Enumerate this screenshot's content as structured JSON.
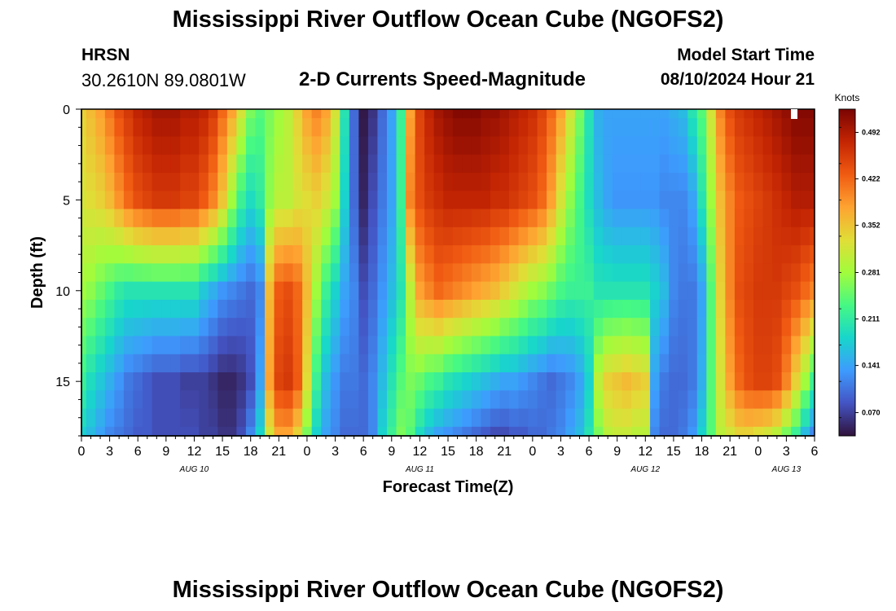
{
  "header": {
    "title": "Mississippi River Outflow Ocean Cube (NGOFS2)",
    "station": "HRSN",
    "coords": "30.2610N  89.0801W",
    "subtitle": "2-D Currents Speed-Magnitude",
    "model_start_label": "Model Start Time",
    "model_start_value": "08/10/2024 Hour 21"
  },
  "footer": {
    "next_title": "Mississippi River Outflow Ocean Cube (NGOFS2)"
  },
  "chart_data": {
    "type": "heatmap",
    "xlabel": "Forecast Time(Z)",
    "ylabel": "Depth (ft)",
    "x_start_hour": 0,
    "x_end_hour": 78,
    "x_ticks": [
      {
        "hour": 0,
        "label": "0"
      },
      {
        "hour": 3,
        "label": "3"
      },
      {
        "hour": 6,
        "label": "6"
      },
      {
        "hour": 9,
        "label": "9"
      },
      {
        "hour": 12,
        "label": "12"
      },
      {
        "hour": 15,
        "label": "15"
      },
      {
        "hour": 18,
        "label": "18"
      },
      {
        "hour": 21,
        "label": "21"
      },
      {
        "hour": 24,
        "label": "0"
      },
      {
        "hour": 27,
        "label": "3"
      },
      {
        "hour": 30,
        "label": "6"
      },
      {
        "hour": 33,
        "label": "9"
      },
      {
        "hour": 36,
        "label": "12"
      },
      {
        "hour": 39,
        "label": "15"
      },
      {
        "hour": 42,
        "label": "18"
      },
      {
        "hour": 45,
        "label": "21"
      },
      {
        "hour": 48,
        "label": "0"
      },
      {
        "hour": 51,
        "label": "3"
      },
      {
        "hour": 54,
        "label": "6"
      },
      {
        "hour": 57,
        "label": "9"
      },
      {
        "hour": 60,
        "label": "12"
      },
      {
        "hour": 63,
        "label": "15"
      },
      {
        "hour": 66,
        "label": "18"
      },
      {
        "hour": 69,
        "label": "21"
      },
      {
        "hour": 72,
        "label": "0"
      },
      {
        "hour": 75,
        "label": "3"
      },
      {
        "hour": 78,
        "label": "6"
      }
    ],
    "date_labels": [
      {
        "hour": 12,
        "label": "AUG 10"
      },
      {
        "hour": 36,
        "label": "AUG 11"
      },
      {
        "hour": 60,
        "label": "AUG 12"
      },
      {
        "hour": 75,
        "label": "AUG 13"
      }
    ],
    "ylim": [
      0,
      18
    ],
    "y_ticks": [
      0,
      5,
      10,
      15
    ],
    "y_inverted": true,
    "colorbar": {
      "label": "Knots",
      "vmin": 0.035,
      "vmax": 0.527,
      "ticks": [
        "0.492",
        "0.422",
        "0.352",
        "0.281",
        "0.211",
        "0.141",
        "0.070"
      ],
      "colormap": [
        "#30123b",
        "#4454c4",
        "#3e9bfe",
        "#18d6cb",
        "#46f884",
        "#a2fc3c",
        "#e1dd37",
        "#fea331",
        "#f05b12",
        "#c42503",
        "#7a0403"
      ]
    },
    "depths_ft": [
      0,
      1,
      2,
      3,
      4,
      5,
      6,
      7,
      8,
      9,
      10,
      11,
      12,
      13,
      14,
      15,
      16,
      17,
      18
    ],
    "key_hours": [
      0,
      1,
      2,
      3,
      4,
      5,
      6,
      7,
      8,
      9,
      10,
      11,
      12,
      13,
      14,
      15,
      16,
      17,
      18,
      19,
      20,
      21,
      22,
      23,
      24,
      25,
      26,
      27,
      28,
      29,
      30,
      31,
      32,
      33,
      34,
      35,
      36,
      37,
      38,
      39,
      40,
      41,
      42,
      43,
      44,
      45,
      46,
      47,
      48,
      49,
      50,
      51,
      52,
      53,
      54,
      55,
      56,
      57,
      58,
      59,
      60,
      61,
      62,
      63,
      64,
      65,
      66,
      67,
      68,
      69,
      70,
      71,
      72,
      73,
      74,
      75,
      76,
      77,
      78
    ],
    "profile_depths_ft": [
      0,
      5,
      10,
      15,
      18
    ],
    "profiles_knots": [
      [
        0.34,
        0.32,
        0.28,
        0.22,
        0.18
      ],
      [
        0.36,
        0.33,
        0.27,
        0.19,
        0.16
      ],
      [
        0.38,
        0.34,
        0.25,
        0.17,
        0.14
      ],
      [
        0.41,
        0.36,
        0.23,
        0.15,
        0.12
      ],
      [
        0.44,
        0.39,
        0.21,
        0.13,
        0.11
      ],
      [
        0.46,
        0.42,
        0.2,
        0.11,
        0.1
      ],
      [
        0.48,
        0.44,
        0.2,
        0.1,
        0.09
      ],
      [
        0.49,
        0.45,
        0.2,
        0.09,
        0.09
      ],
      [
        0.5,
        0.46,
        0.2,
        0.08,
        0.08
      ],
      [
        0.5,
        0.46,
        0.2,
        0.08,
        0.08
      ],
      [
        0.5,
        0.46,
        0.2,
        0.08,
        0.08
      ],
      [
        0.49,
        0.45,
        0.2,
        0.07,
        0.08
      ],
      [
        0.49,
        0.45,
        0.2,
        0.07,
        0.08
      ],
      [
        0.48,
        0.43,
        0.17,
        0.07,
        0.07
      ],
      [
        0.46,
        0.4,
        0.15,
        0.06,
        0.07
      ],
      [
        0.42,
        0.35,
        0.13,
        0.05,
        0.06
      ],
      [
        0.38,
        0.28,
        0.12,
        0.05,
        0.06
      ],
      [
        0.32,
        0.22,
        0.11,
        0.06,
        0.08
      ],
      [
        0.26,
        0.19,
        0.1,
        0.08,
        0.12
      ],
      [
        0.24,
        0.21,
        0.12,
        0.14,
        0.18
      ],
      [
        0.26,
        0.27,
        0.36,
        0.38,
        0.32
      ],
      [
        0.28,
        0.3,
        0.43,
        0.45,
        0.38
      ],
      [
        0.3,
        0.3,
        0.44,
        0.46,
        0.38
      ],
      [
        0.34,
        0.32,
        0.42,
        0.43,
        0.34
      ],
      [
        0.38,
        0.33,
        0.36,
        0.33,
        0.26
      ],
      [
        0.4,
        0.34,
        0.28,
        0.22,
        0.18
      ],
      [
        0.38,
        0.32,
        0.22,
        0.16,
        0.14
      ],
      [
        0.32,
        0.28,
        0.18,
        0.13,
        0.12
      ],
      [
        0.2,
        0.18,
        0.14,
        0.11,
        0.1
      ],
      [
        0.1,
        0.1,
        0.12,
        0.11,
        0.1
      ],
      [
        0.04,
        0.05,
        0.08,
        0.1,
        0.1
      ],
      [
        0.06,
        0.08,
        0.1,
        0.12,
        0.12
      ],
      [
        0.1,
        0.11,
        0.13,
        0.16,
        0.18
      ],
      [
        0.14,
        0.14,
        0.16,
        0.2,
        0.22
      ],
      [
        0.22,
        0.22,
        0.2,
        0.24,
        0.26
      ],
      [
        0.38,
        0.4,
        0.3,
        0.26,
        0.24
      ],
      [
        0.45,
        0.44,
        0.38,
        0.25,
        0.19
      ],
      [
        0.48,
        0.46,
        0.4,
        0.23,
        0.16
      ],
      [
        0.5,
        0.47,
        0.42,
        0.22,
        0.14
      ],
      [
        0.51,
        0.48,
        0.41,
        0.2,
        0.13
      ],
      [
        0.52,
        0.48,
        0.4,
        0.19,
        0.12
      ],
      [
        0.52,
        0.48,
        0.39,
        0.18,
        0.11
      ],
      [
        0.52,
        0.48,
        0.38,
        0.17,
        0.1
      ],
      [
        0.51,
        0.48,
        0.37,
        0.16,
        0.09
      ],
      [
        0.51,
        0.47,
        0.36,
        0.15,
        0.08
      ],
      [
        0.5,
        0.47,
        0.34,
        0.14,
        0.08
      ],
      [
        0.49,
        0.46,
        0.32,
        0.14,
        0.09
      ],
      [
        0.48,
        0.45,
        0.3,
        0.13,
        0.09
      ],
      [
        0.47,
        0.44,
        0.28,
        0.12,
        0.1
      ],
      [
        0.45,
        0.42,
        0.27,
        0.11,
        0.1
      ],
      [
        0.42,
        0.38,
        0.25,
        0.1,
        0.11
      ],
      [
        0.38,
        0.32,
        0.23,
        0.11,
        0.12
      ],
      [
        0.32,
        0.27,
        0.22,
        0.12,
        0.14
      ],
      [
        0.26,
        0.23,
        0.22,
        0.14,
        0.16
      ],
      [
        0.2,
        0.19,
        0.22,
        0.18,
        0.2
      ],
      [
        0.15,
        0.16,
        0.2,
        0.3,
        0.26
      ],
      [
        0.14,
        0.14,
        0.2,
        0.34,
        0.3
      ],
      [
        0.14,
        0.13,
        0.2,
        0.35,
        0.31
      ],
      [
        0.14,
        0.13,
        0.2,
        0.36,
        0.31
      ],
      [
        0.14,
        0.13,
        0.2,
        0.35,
        0.3
      ],
      [
        0.14,
        0.13,
        0.2,
        0.34,
        0.3
      ],
      [
        0.14,
        0.13,
        0.18,
        0.14,
        0.12
      ],
      [
        0.14,
        0.12,
        0.16,
        0.11,
        0.1
      ],
      [
        0.15,
        0.12,
        0.12,
        0.1,
        0.1
      ],
      [
        0.16,
        0.12,
        0.11,
        0.1,
        0.11
      ],
      [
        0.2,
        0.14,
        0.11,
        0.11,
        0.13
      ],
      [
        0.24,
        0.2,
        0.14,
        0.15,
        0.18
      ],
      [
        0.32,
        0.28,
        0.24,
        0.24,
        0.24
      ],
      [
        0.4,
        0.36,
        0.34,
        0.32,
        0.3
      ],
      [
        0.44,
        0.4,
        0.4,
        0.38,
        0.32
      ],
      [
        0.46,
        0.43,
        0.44,
        0.42,
        0.34
      ],
      [
        0.47,
        0.44,
        0.45,
        0.44,
        0.34
      ],
      [
        0.48,
        0.45,
        0.46,
        0.45,
        0.33
      ],
      [
        0.49,
        0.46,
        0.46,
        0.45,
        0.32
      ],
      [
        0.5,
        0.47,
        0.46,
        0.44,
        0.3
      ],
      [
        0.51,
        0.48,
        0.45,
        0.4,
        0.26
      ],
      [
        0.52,
        0.49,
        0.44,
        0.34,
        0.22
      ],
      [
        0.52,
        0.49,
        0.42,
        0.28,
        0.16
      ],
      [
        0.52,
        0.49,
        0.4,
        0.22,
        0.12
      ]
    ]
  }
}
